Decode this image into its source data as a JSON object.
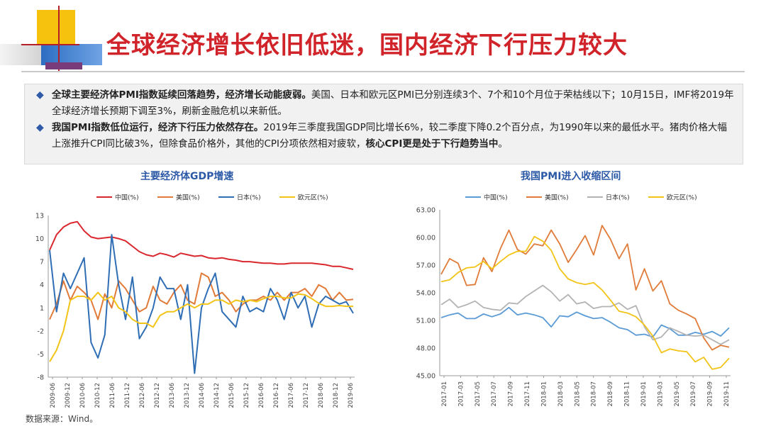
{
  "title": "全球经济增长依旧低迷，国内经济下行压力较大",
  "bullets": [
    {
      "bold": "全球主要经济体PMI指数延续回落趋势，经济增长动能疲弱。",
      "text": "美国、日本和欧元区PMI已分别连续3个、7个和10个月位于荣枯线以下；10月15日，IMF将2019年全球经济增长预期下调至3%，刷新金融危机以来新低。",
      "text_bold": "",
      "text_tail": ""
    },
    {
      "bold": "我国PMI指数低位运行，经济下行压力依然存在。",
      "text": "2019年三季度我国GDP同比增长6%，较二季度下降0.2个百分点，为1990年以来的最低水平。猪肉价格大幅上涨推升CPI同比破3%，但除食品价格外，其他的CPI分项依然相对疲软，",
      "text_bold": "核心CPI更是处于下行趋势当中",
      "text_tail": "。"
    }
  ],
  "source": "数据来源：Wind。",
  "colors": {
    "title": "#d0242a",
    "accent": "#2b59a6"
  },
  "chart_data": [
    {
      "type": "line",
      "title": "主要经济体GDP增速",
      "ylim": [
        -8,
        13
      ],
      "yticks": [
        13,
        10,
        7,
        4,
        1,
        -2,
        -5,
        -8
      ],
      "xlabels": [
        "2009-06",
        "2009-12",
        "2010-06",
        "2010-12",
        "2011-06",
        "2011-12",
        "2012-06",
        "2012-12",
        "2013-06",
        "2013-12",
        "2014-06",
        "2014-12",
        "2015-06",
        "2015-12",
        "2016-06",
        "2016-12",
        "2017-06",
        "2017-12",
        "2018-06",
        "2018-12",
        "2019-06"
      ],
      "series": [
        {
          "name": "中国(%)",
          "color": "#d9272e",
          "values": [
            8.5,
            10.5,
            11.5,
            12.0,
            12.2,
            11.0,
            10.2,
            10.0,
            10.1,
            10.2,
            10.0,
            9.7,
            9.0,
            8.3,
            7.9,
            7.7,
            8.1,
            7.9,
            7.6,
            8.1,
            7.9,
            7.7,
            7.8,
            7.5,
            7.4,
            7.5,
            7.3,
            7.2,
            7.0,
            7.0,
            6.9,
            6.8,
            6.8,
            6.7,
            6.7,
            6.8,
            6.8,
            6.8,
            6.8,
            6.7,
            6.6,
            6.4,
            6.4,
            6.2,
            6.0
          ]
        },
        {
          "name": "美国(%)",
          "color": "#e07b39",
          "values": [
            -0.5,
            1.5,
            4.5,
            2.0,
            3.8,
            3.0,
            2.0,
            -0.5,
            2.8,
            1.0,
            4.5,
            3.5,
            2.0,
            0.5,
            1.0,
            3.8,
            2.0,
            1.5,
            3.0,
            4.0,
            2.0,
            1.5,
            5.5,
            5.0,
            2.5,
            3.0,
            2.0,
            0.5,
            1.5,
            2.0,
            2.0,
            2.5,
            2.0,
            3.0,
            2.0,
            3.0,
            3.0,
            3.5,
            2.5,
            4.0,
            3.5,
            2.0,
            3.0,
            2.0,
            2.1
          ]
        },
        {
          "name": "日本(%)",
          "color": "#2f6eb5",
          "values": [
            8.5,
            0.5,
            5.5,
            3.5,
            5.5,
            7.5,
            -3.5,
            -5.5,
            -2.5,
            10.5,
            4.0,
            -0.5,
            5.0,
            -3.0,
            -1.5,
            1.0,
            5.0,
            3.5,
            3.5,
            -0.5,
            4.0,
            -7.5,
            1.0,
            3.5,
            5.5,
            0.5,
            -0.5,
            -1.5,
            2.5,
            0.5,
            1.0,
            0.5,
            3.5,
            2.0,
            -0.5,
            3.0,
            1.0,
            2.5,
            -1.5,
            1.5,
            2.5,
            2.0,
            1.5,
            1.8,
            0.3
          ]
        },
        {
          "name": "欧元区(%)",
          "color": "#f2c418",
          "values": [
            -6.0,
            -4.5,
            -2.0,
            2.0,
            2.5,
            2.5,
            2.0,
            3.0,
            2.0,
            2.5,
            1.0,
            0.5,
            -0.5,
            -1.0,
            -1.0,
            -1.5,
            0.0,
            0.5,
            0.5,
            1.0,
            1.5,
            1.0,
            1.5,
            1.5,
            2.0,
            2.0,
            1.5,
            2.0,
            1.8,
            2.0,
            1.8,
            2.2,
            2.5,
            2.5,
            2.3,
            2.3,
            2.8,
            2.7,
            2.2,
            1.6,
            1.2,
            1.2,
            1.3,
            1.2,
            1.2
          ]
        }
      ]
    },
    {
      "type": "line",
      "title": "我国PMI进入收缩区间",
      "ylim": [
        45.0,
        63.0
      ],
      "yticks": [
        "63.00",
        "60.00",
        "57.00",
        "54.00",
        "51.00",
        "48.00",
        "45.00"
      ],
      "xlabels": [
        "2017-01",
        "2017-03",
        "2017-05",
        "2017-07",
        "2017-09",
        "2017-11",
        "2018-01",
        "2018-03",
        "2018-05",
        "2018-07",
        "2018-09",
        "2018-11",
        "2019-01",
        "2019-03",
        "2019-05",
        "2019-07",
        "2019-09",
        "2019-11"
      ],
      "series": [
        {
          "name": "中国(%)",
          "color": "#5b9bd5",
          "values": [
            51.3,
            51.6,
            51.8,
            51.2,
            51.2,
            51.7,
            51.4,
            51.7,
            52.4,
            51.6,
            51.8,
            51.6,
            51.3,
            50.3,
            51.5,
            51.4,
            51.9,
            51.5,
            51.2,
            51.3,
            50.8,
            50.2,
            50.0,
            49.4,
            49.5,
            49.2,
            50.5,
            50.1,
            49.4,
            49.4,
            49.7,
            49.5,
            49.8,
            49.3,
            50.2
          ]
        },
        {
          "name": "美国(%)",
          "color": "#e07b39",
          "values": [
            56.0,
            57.7,
            57.2,
            54.8,
            54.9,
            57.8,
            56.3,
            58.8,
            60.8,
            58.7,
            58.2,
            59.3,
            59.1,
            60.8,
            59.3,
            57.3,
            58.7,
            60.2,
            58.1,
            61.3,
            59.8,
            57.7,
            59.3,
            54.3,
            56.6,
            54.2,
            55.3,
            52.8,
            52.1,
            51.7,
            51.2,
            49.1,
            47.8,
            48.3,
            48.1
          ]
        },
        {
          "name": "日本(%)",
          "color": "#b3b3b3",
          "values": [
            52.7,
            53.3,
            52.4,
            52.7,
            53.1,
            52.4,
            52.2,
            52.1,
            52.9,
            52.8,
            53.6,
            54.2,
            54.8,
            54.1,
            53.1,
            53.8,
            52.8,
            53.0,
            52.3,
            52.5,
            52.5,
            52.9,
            52.2,
            52.6,
            50.3,
            48.9,
            49.2,
            50.2,
            49.8,
            49.4,
            49.3,
            49.4,
            48.9,
            48.4,
            48.9
          ]
        },
        {
          "name": "欧元区(%)",
          "color": "#f2c418",
          "values": [
            55.2,
            55.4,
            56.2,
            56.7,
            56.8,
            57.4,
            56.6,
            57.4,
            58.1,
            58.5,
            58.5,
            60.1,
            59.6,
            58.6,
            56.6,
            55.5,
            55.1,
            54.9,
            55.1,
            54.3,
            53.2,
            52.0,
            51.8,
            51.4,
            50.5,
            49.3,
            47.5,
            47.9,
            47.7,
            47.6,
            46.5,
            47.0,
            45.7,
            45.9,
            46.9
          ]
        }
      ]
    }
  ]
}
